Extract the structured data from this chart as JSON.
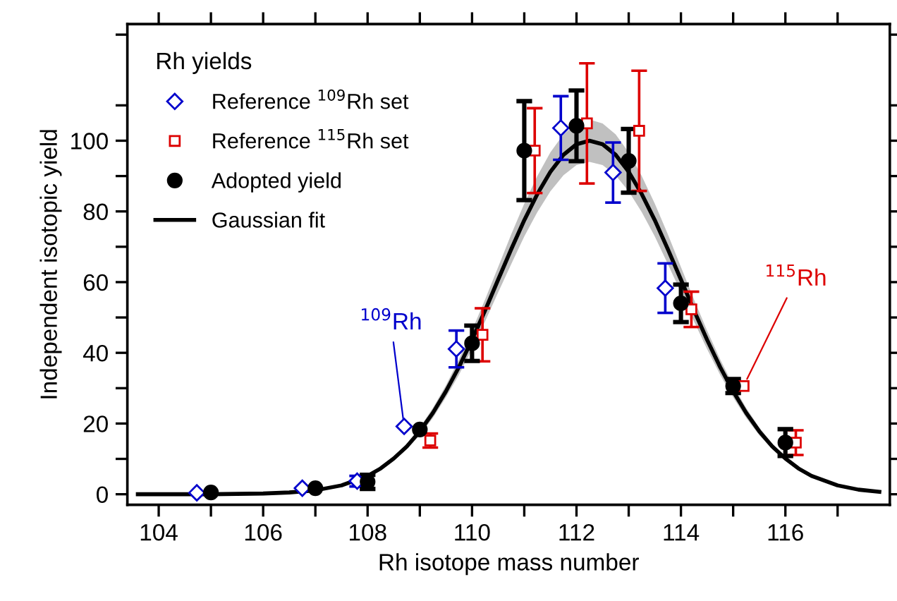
{
  "chart_data": {
    "type": "scatter",
    "xlabel": "Rh isotope mass number",
    "ylabel": "Independent isotopic yield",
    "legend_title": "Rh yields",
    "xlim": [
      103.4,
      118
    ],
    "ylim": [
      -3,
      133
    ],
    "xticks": [
      104,
      {
        "value": 105,
        "label": null
      },
      106,
      {
        "value": 107,
        "label": null
      },
      108,
      {
        "value": 109,
        "label": null
      },
      110,
      {
        "value": 111,
        "label": null
      },
      112,
      {
        "value": 113,
        "label": null
      },
      114,
      {
        "value": 115,
        "label": null
      },
      116,
      {
        "value": 117,
        "label": null
      }
    ],
    "yticks": [
      0,
      {
        "value": 10,
        "label": null
      },
      20,
      {
        "value": 30,
        "label": null
      },
      40,
      {
        "value": 50,
        "label": null
      },
      60,
      {
        "value": 70,
        "label": null
      },
      80,
      {
        "value": 90,
        "label": null
      },
      100,
      {
        "value": 110,
        "label": null
      },
      {
        "value": 130,
        "label": null
      }
    ],
    "grid": false,
    "legend": "top left",
    "series": [
      {
        "name": "Reference $^{109}$Rh set",
        "marker": "diamond",
        "color": "#0000cc",
        "x": [
          104.73,
          106.75,
          107.8,
          108.7,
          109.7,
          111.7,
          112.7,
          113.7
        ],
        "values": [
          0.4,
          1.7,
          3.7,
          19.2,
          41.1,
          103.6,
          91,
          58.3
        ],
        "errors": [
          null,
          null,
          1.5,
          null,
          5.2,
          9,
          8.5,
          7
        ]
      },
      {
        "name": "Reference $^{115}$Rh set",
        "marker": "square",
        "color": "#dd0000",
        "x": [
          109.2,
          110.2,
          111.2,
          112.2,
          113.2,
          114.2,
          115.2,
          116.2
        ],
        "values": [
          15.2,
          45.1,
          97.2,
          104.9,
          102.8,
          52.3,
          30.6,
          14.6
        ],
        "errors": [
          2,
          7.5,
          12,
          17,
          17,
          5,
          null,
          3.5
        ]
      },
      {
        "name": "Adopted yield",
        "marker": "circle",
        "color": "#000000",
        "x": [
          105,
          107,
          108,
          109,
          110,
          111,
          112,
          113,
          114,
          115,
          116
        ],
        "values": [
          0.5,
          1.7,
          3.5,
          18.3,
          42.7,
          97.2,
          104.2,
          94.3,
          54,
          30.6,
          14.6
        ],
        "errors": [
          null,
          null,
          2,
          null,
          5,
          14,
          10,
          9,
          5.3,
          2,
          3.8
        ]
      },
      {
        "name": "Gaussian fit",
        "type": "line",
        "marker": "none",
        "color": "#000000",
        "x": [
          103.6,
          105,
          106,
          106.5,
          107,
          107.5,
          108,
          108.25,
          108.5,
          108.75,
          109,
          109.25,
          109.5,
          109.75,
          110,
          110.25,
          110.5,
          110.75,
          111,
          111.25,
          111.5,
          111.75,
          112,
          112.25,
          112.5,
          112.75,
          113,
          113.25,
          113.5,
          113.75,
          114,
          114.25,
          114.5,
          114.75,
          115,
          115.25,
          115.5,
          115.75,
          116,
          116.25,
          116.5,
          117,
          117.4,
          117.8
        ],
        "values": [
          0,
          0,
          0.2,
          0.5,
          1.1,
          2.5,
          5.2,
          7.3,
          10.1,
          13.5,
          17.8,
          23,
          29.1,
          36,
          43.7,
          52,
          60.7,
          69.3,
          77.5,
          84.9,
          91.2,
          96,
          99,
          100,
          99,
          96,
          91.2,
          84.9,
          77.5,
          69.3,
          60.7,
          52,
          43.7,
          36,
          29.1,
          23,
          17.8,
          13.5,
          10.1,
          7.3,
          5.2,
          2.5,
          1.3,
          0.7
        ],
        "lower": [
          0,
          0,
          0.2,
          0.5,
          1.0,
          2.4,
          4.9,
          6.9,
          9.5,
          12.7,
          16.7,
          21.6,
          27.4,
          33.8,
          41.1,
          48.9,
          57.1,
          65.1,
          72.9,
          79.8,
          85.7,
          90.2,
          93.1,
          94,
          93.1,
          90.2,
          85.7,
          79.8,
          72.9,
          65.1,
          57.1,
          48.9,
          41.1,
          33.8,
          27.4,
          21.6,
          16.7,
          12.7,
          9.5,
          6.9,
          4.9,
          2.4,
          1.2,
          0.7
        ],
        "upper": [
          0,
          0,
          0.2,
          0.5,
          1.2,
          2.7,
          5.5,
          7.7,
          10.7,
          14.3,
          18.9,
          24.4,
          30.8,
          38.2,
          46.3,
          55.1,
          64.3,
          73.5,
          82.2,
          90.0,
          96.7,
          101.8,
          104.9,
          106,
          104.9,
          101.8,
          96.7,
          90.0,
          82.2,
          73.5,
          64.3,
          55.1,
          46.3,
          38.2,
          30.8,
          24.4,
          18.9,
          14.3,
          10.7,
          7.7,
          5.5,
          2.7,
          1.4,
          0.7
        ]
      }
    ],
    "annotations": [
      {
        "text": "$^{109}$Rh",
        "x": 108.7,
        "y": 19.2
      },
      {
        "text": "$^{115}$Rh",
        "x": 115.2,
        "y": 30.6
      }
    ]
  }
}
